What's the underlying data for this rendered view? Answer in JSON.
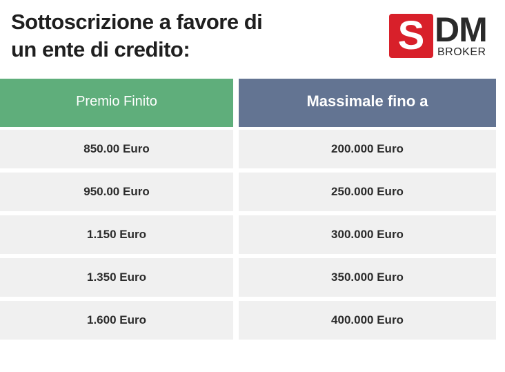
{
  "header": {
    "title_line1": "Sottoscrizione a favore di",
    "title_line2": "un ente di credito:"
  },
  "logo": {
    "letter_s": "S",
    "letters_dm": "DM",
    "sub": "BROKER",
    "accent_color": "#d8202a"
  },
  "table": {
    "columns": [
      {
        "header": "Premio Finito",
        "color": "#5fae7b",
        "rows": [
          "850.00 Euro",
          "950.00 Euro",
          "1.150 Euro",
          "1.350 Euro",
          "1.600 Euro"
        ]
      },
      {
        "header": "Massimale fino a",
        "color": "#637492",
        "rows": [
          "200.000 Euro",
          "250.000 Euro",
          "300.000 Euro",
          "350.000 Euro",
          "400.000 Euro"
        ]
      }
    ]
  }
}
